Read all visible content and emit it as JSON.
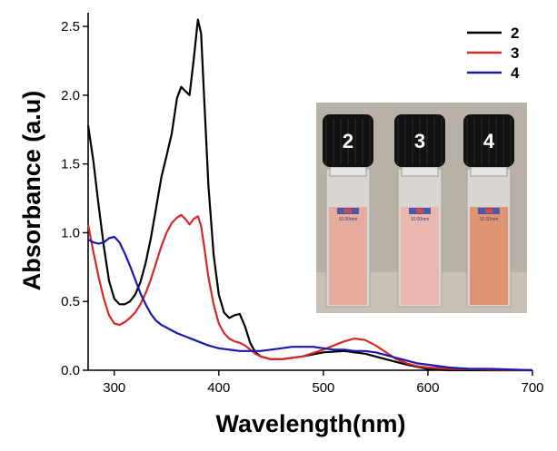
{
  "chart_data": {
    "type": "line",
    "title": "",
    "xlabel": "Wavelength(nm)",
    "ylabel": "Absorbance (a.u)",
    "xlim": [
      275,
      700
    ],
    "ylim": [
      0,
      2.6
    ],
    "xticks": [
      300,
      400,
      500,
      600,
      700
    ],
    "yticks": [
      0.0,
      0.5,
      1.0,
      1.5,
      2.0,
      2.5
    ],
    "xtick_labels": [
      "300",
      "400",
      "500",
      "600",
      "700"
    ],
    "ytick_labels": [
      "0.0",
      "0.5",
      "1.0",
      "1.5",
      "2.0",
      "2.5"
    ],
    "legend_position": "top-right",
    "series": [
      {
        "name": "2",
        "color": "#000000",
        "points": [
          [
            275,
            1.78
          ],
          [
            280,
            1.52
          ],
          [
            285,
            1.2
          ],
          [
            290,
            0.9
          ],
          [
            295,
            0.65
          ],
          [
            300,
            0.52
          ],
          [
            305,
            0.48
          ],
          [
            310,
            0.48
          ],
          [
            315,
            0.5
          ],
          [
            320,
            0.55
          ],
          [
            325,
            0.64
          ],
          [
            330,
            0.78
          ],
          [
            335,
            0.96
          ],
          [
            340,
            1.18
          ],
          [
            345,
            1.4
          ],
          [
            350,
            1.56
          ],
          [
            355,
            1.72
          ],
          [
            360,
            1.98
          ],
          [
            364,
            2.06
          ],
          [
            368,
            2.03
          ],
          [
            372,
            2.0
          ],
          [
            376,
            2.26
          ],
          [
            380,
            2.55
          ],
          [
            383,
            2.45
          ],
          [
            386,
            1.98
          ],
          [
            390,
            1.35
          ],
          [
            395,
            0.84
          ],
          [
            400,
            0.55
          ],
          [
            405,
            0.42
          ],
          [
            410,
            0.38
          ],
          [
            415,
            0.4
          ],
          [
            420,
            0.41
          ],
          [
            425,
            0.32
          ],
          [
            430,
            0.2
          ],
          [
            435,
            0.13
          ],
          [
            440,
            0.1
          ],
          [
            450,
            0.08
          ],
          [
            460,
            0.08
          ],
          [
            480,
            0.1
          ],
          [
            500,
            0.13
          ],
          [
            520,
            0.14
          ],
          [
            540,
            0.12
          ],
          [
            560,
            0.08
          ],
          [
            580,
            0.04
          ],
          [
            600,
            0.01
          ],
          [
            620,
            0.0
          ],
          [
            700,
            0.0
          ]
        ]
      },
      {
        "name": "3",
        "color": "#d62828",
        "points": [
          [
            275,
            1.06
          ],
          [
            280,
            0.86
          ],
          [
            285,
            0.68
          ],
          [
            290,
            0.52
          ],
          [
            295,
            0.4
          ],
          [
            300,
            0.34
          ],
          [
            305,
            0.33
          ],
          [
            310,
            0.35
          ],
          [
            315,
            0.38
          ],
          [
            320,
            0.42
          ],
          [
            325,
            0.48
          ],
          [
            330,
            0.56
          ],
          [
            335,
            0.66
          ],
          [
            340,
            0.78
          ],
          [
            345,
            0.9
          ],
          [
            350,
            1.0
          ],
          [
            355,
            1.07
          ],
          [
            360,
            1.11
          ],
          [
            364,
            1.13
          ],
          [
            368,
            1.1
          ],
          [
            372,
            1.06
          ],
          [
            376,
            1.1
          ],
          [
            380,
            1.12
          ],
          [
            383,
            1.05
          ],
          [
            386,
            0.9
          ],
          [
            390,
            0.68
          ],
          [
            395,
            0.48
          ],
          [
            400,
            0.34
          ],
          [
            405,
            0.27
          ],
          [
            410,
            0.23
          ],
          [
            415,
            0.21
          ],
          [
            420,
            0.2
          ],
          [
            425,
            0.18
          ],
          [
            430,
            0.15
          ],
          [
            435,
            0.12
          ],
          [
            440,
            0.1
          ],
          [
            450,
            0.08
          ],
          [
            460,
            0.08
          ],
          [
            480,
            0.1
          ],
          [
            500,
            0.15
          ],
          [
            510,
            0.18
          ],
          [
            520,
            0.21
          ],
          [
            530,
            0.23
          ],
          [
            540,
            0.22
          ],
          [
            550,
            0.18
          ],
          [
            560,
            0.13
          ],
          [
            570,
            0.08
          ],
          [
            580,
            0.05
          ],
          [
            590,
            0.03
          ],
          [
            600,
            0.02
          ],
          [
            620,
            0.01
          ],
          [
            700,
            0.0
          ]
        ]
      },
      {
        "name": "4",
        "color": "#1a1aaa",
        "points": [
          [
            275,
            0.95
          ],
          [
            280,
            0.93
          ],
          [
            285,
            0.92
          ],
          [
            290,
            0.93
          ],
          [
            295,
            0.96
          ],
          [
            300,
            0.97
          ],
          [
            305,
            0.93
          ],
          [
            310,
            0.85
          ],
          [
            315,
            0.76
          ],
          [
            320,
            0.66
          ],
          [
            325,
            0.56
          ],
          [
            330,
            0.48
          ],
          [
            335,
            0.41
          ],
          [
            340,
            0.36
          ],
          [
            345,
            0.33
          ],
          [
            350,
            0.31
          ],
          [
            355,
            0.29
          ],
          [
            360,
            0.27
          ],
          [
            370,
            0.24
          ],
          [
            380,
            0.21
          ],
          [
            390,
            0.18
          ],
          [
            400,
            0.16
          ],
          [
            410,
            0.15
          ],
          [
            420,
            0.14
          ],
          [
            430,
            0.14
          ],
          [
            440,
            0.14
          ],
          [
            450,
            0.15
          ],
          [
            460,
            0.16
          ],
          [
            470,
            0.17
          ],
          [
            480,
            0.17
          ],
          [
            490,
            0.17
          ],
          [
            500,
            0.16
          ],
          [
            510,
            0.15
          ],
          [
            520,
            0.15
          ],
          [
            530,
            0.14
          ],
          [
            540,
            0.14
          ],
          [
            550,
            0.13
          ],
          [
            560,
            0.11
          ],
          [
            570,
            0.09
          ],
          [
            580,
            0.07
          ],
          [
            590,
            0.05
          ],
          [
            600,
            0.04
          ],
          [
            620,
            0.02
          ],
          [
            640,
            0.01
          ],
          [
            660,
            0.01
          ],
          [
            700,
            0.0
          ]
        ]
      }
    ],
    "inset": {
      "description": "cuvettes",
      "cap_labels": [
        "2",
        "3",
        "4"
      ],
      "cuvette_label": "10.00mm",
      "liquid_colors": [
        "#e7a79a",
        "#ecb5ab",
        "#e08e6b"
      ]
    }
  }
}
